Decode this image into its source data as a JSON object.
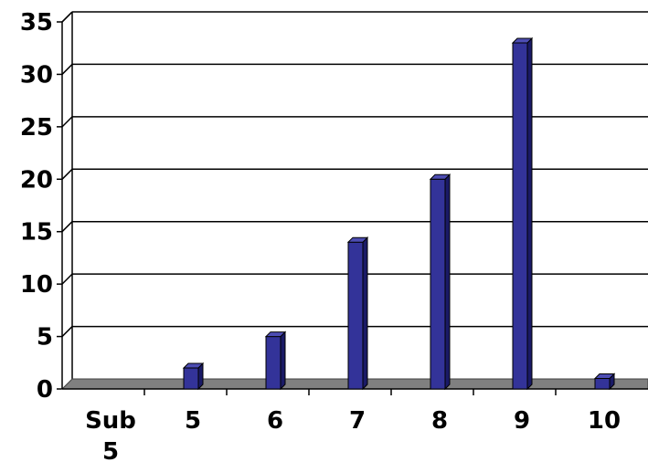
{
  "chart_data": {
    "type": "bar",
    "categories": [
      "Sub 5",
      "5",
      "6",
      "7",
      "8",
      "9",
      "10"
    ],
    "values": [
      0,
      2,
      5,
      14,
      20,
      33,
      1
    ],
    "ylim": [
      0,
      35
    ],
    "yticks": [
      0,
      5,
      10,
      15,
      20,
      25,
      30,
      35
    ],
    "grid": true,
    "colors": {
      "bar_front": "#333399",
      "bar_side": "#1a1a66",
      "bar_top": "#4d4db3",
      "grid": "#000000",
      "floor": "#808080"
    }
  }
}
